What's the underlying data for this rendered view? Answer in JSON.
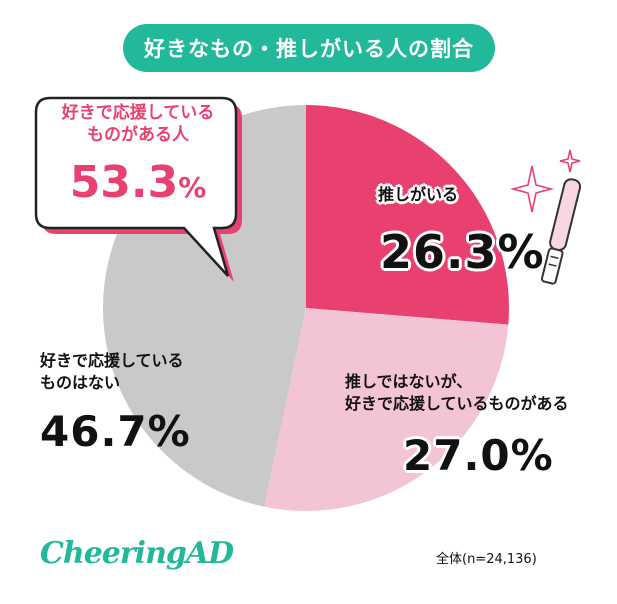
{
  "title": "好きなもの・推しがいる人の割合",
  "chart_data": {
    "type": "pie",
    "slices": [
      {
        "label": "推しがいる",
        "value": 26.3,
        "display": "26.3%",
        "color": "#e8416f"
      },
      {
        "label": "推しではないが、好きで応援しているものがある",
        "display": "27.0%",
        "value": 27.0,
        "color": "#f3c4d6"
      },
      {
        "label": "好きで応援しているものはない",
        "display": "46.7%",
        "value": 46.7,
        "color": "#c9c9c9"
      }
    ]
  },
  "labels": {
    "oshi": {
      "text": "推しがいる",
      "pct": "26.3%"
    },
    "fan": {
      "line1": "推しではないが、",
      "line2": "好きで応援しているものがある",
      "pct": "27.0%"
    },
    "none": {
      "line1": "好きで応援している",
      "line2": "ものはない",
      "pct": "46.7%"
    }
  },
  "callout": {
    "line1": "好きで応援している",
    "line2": "ものがある人",
    "value": "53.3",
    "unit": "%",
    "color": "#e8416f"
  },
  "logo": "CheeringAD",
  "note": "全体(n=24,136)",
  "icons": [
    "sparkle-icon",
    "penlight-icon"
  ]
}
